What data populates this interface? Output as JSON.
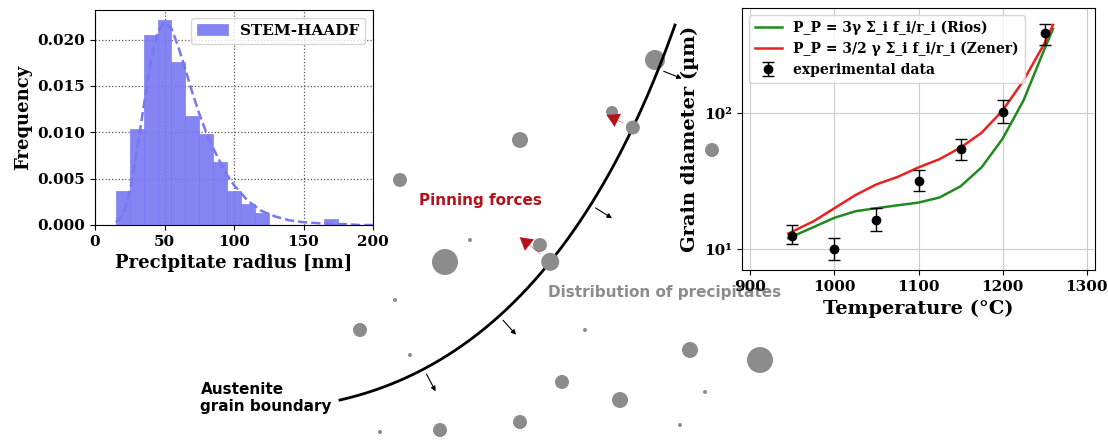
{
  "chart_data": [
    {
      "type": "histogram",
      "xlabel": "Precipitate radius [nm]",
      "ylabel": "Frequency",
      "xlim": [
        0,
        200
      ],
      "ylim": [
        0,
        0.0232
      ],
      "xticks": [
        0,
        50,
        100,
        150,
        200
      ],
      "yticks": [
        {
          "value": 0,
          "label": "0.000"
        },
        {
          "value": 0.005,
          "label": "0.005"
        },
        {
          "value": 0.01,
          "label": "0.010"
        },
        {
          "value": 0.015,
          "label": "0.015"
        },
        {
          "value": 0.02,
          "label": "0.020"
        }
      ],
      "grid": true,
      "legend": "upper right",
      "series": [
        {
          "name": "STEM-HAADF",
          "type": "histogram",
          "color": "#7777f2",
          "bins": [
            15,
            25,
            35,
            45,
            55,
            65,
            75,
            85,
            95,
            105,
            115,
            125,
            135,
            145,
            155,
            165,
            175
          ],
          "values": [
            0.0037,
            0.0104,
            0.0205,
            0.0221,
            0.0176,
            0.0118,
            0.0098,
            0.0068,
            0.0037,
            0.0023,
            0.0013,
            0,
            0,
            0,
            0,
            0.0007
          ]
        },
        {
          "type": "line",
          "line_style": "dashed",
          "color": "#7777f2",
          "x": [
            15,
            20,
            25,
            30,
            35,
            40,
            45,
            50,
            55,
            60,
            65,
            70,
            75,
            80,
            85,
            90,
            95,
            100,
            110,
            120,
            130,
            140,
            150,
            160,
            170,
            180,
            190,
            200
          ],
          "values": [
            0.0003,
            0.001,
            0.0035,
            0.0078,
            0.0128,
            0.0175,
            0.0208,
            0.0219,
            0.0212,
            0.0192,
            0.0168,
            0.0143,
            0.012,
            0.01,
            0.0083,
            0.0068,
            0.0054,
            0.0043,
            0.0026,
            0.0015,
            0.0009,
            0.0005,
            0.0003,
            0.0002,
            0.0001,
            0.0001,
            0,
            0
          ]
        }
      ]
    },
    {
      "type": "line",
      "xlabel": "Temperature (°C)",
      "ylabel": "Grain diameter (µm)",
      "log": "y",
      "xlim": [
        890,
        1310
      ],
      "ylim": [
        7,
        600
      ],
      "xticks": [
        900,
        1000,
        1100,
        1200,
        1300
      ],
      "yticks": [
        {
          "value": 10,
          "label": "10¹"
        },
        {
          "value": 100,
          "label": "10²"
        }
      ],
      "grid": true,
      "legend": "upper left",
      "series": [
        {
          "name": "P_P = 3γ Σ_i f_i/r_i (Rios)",
          "type": "line",
          "color": "#1f8a1f",
          "line_style": "solid",
          "x": [
            945,
            975,
            1000,
            1025,
            1050,
            1075,
            1100,
            1125,
            1150,
            1175,
            1200,
            1225,
            1250,
            1260
          ],
          "values": [
            12,
            14.5,
            17,
            19,
            20,
            21,
            22,
            24,
            29,
            40,
            65,
            125,
            300,
            420
          ]
        },
        {
          "name": "P_P = 3/2 γ Σ_i f_i/r_i (Zener)",
          "type": "line",
          "color": "#e8231f",
          "line_style": "solid",
          "x": [
            945,
            975,
            1000,
            1025,
            1050,
            1075,
            1100,
            1125,
            1150,
            1175,
            1200,
            1225,
            1250,
            1260
          ],
          "values": [
            13,
            16,
            20,
            25,
            30,
            34,
            40,
            46,
            56,
            72,
            105,
            175,
            330,
            450
          ]
        },
        {
          "name": "experimental data",
          "type": "scatter",
          "color": "#000000",
          "marker": "circle",
          "x": [
            950,
            1000,
            1050,
            1100,
            1150,
            1200,
            1250
          ],
          "values": [
            12.5,
            10,
            16.5,
            32,
            55,
            103,
            390
          ],
          "error_minus": [
            1.7,
            1.7,
            3,
            5,
            10,
            18,
            70
          ],
          "error_plus": [
            2.5,
            2,
            3.5,
            6,
            10,
            22,
            70
          ]
        }
      ]
    }
  ],
  "diagram": {
    "pinning_label": "Pinning forces",
    "boundary_label": "Austenite\ngrain boundary",
    "precipitates_label": "Distribution of precipitates"
  }
}
